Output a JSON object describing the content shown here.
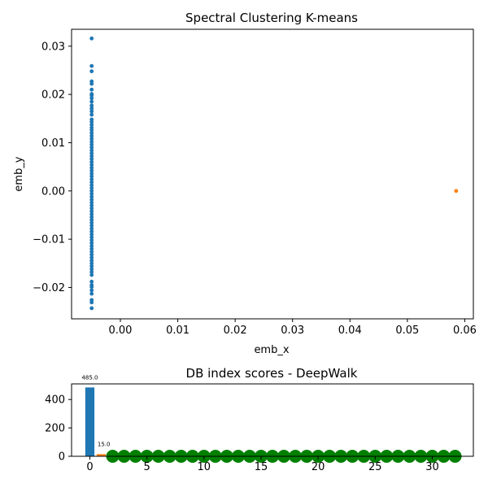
{
  "chart_data": [
    {
      "type": "scatter",
      "title": "Spectral Clustering K-means",
      "xlabel": "emb_x",
      "ylabel": "emb_y",
      "xlim": [
        -0.0085,
        0.0615
      ],
      "ylim": [
        -0.0265,
        0.0335
      ],
      "xticks": [
        0.0,
        0.01,
        0.02,
        0.03,
        0.04,
        0.05,
        0.06
      ],
      "xtick_labels": [
        "0.00",
        "0.01",
        "0.02",
        "0.03",
        "0.04",
        "0.05",
        "0.06"
      ],
      "yticks": [
        -0.02,
        -0.01,
        0.0,
        0.01,
        0.02,
        0.03
      ],
      "ytick_labels": [
        "−0.02",
        "−0.01",
        "0.00",
        "0.01",
        "0.02",
        "0.03"
      ],
      "grid": false,
      "series": [
        {
          "color": "#1f77b4",
          "x": -0.005,
          "y": [
            0.0316,
            0.0259,
            0.0248,
            0.0227,
            0.0222,
            0.021,
            0.0201,
            0.0198,
            0.0192,
            0.0185,
            0.0177,
            0.0171,
            0.0165,
            0.0158,
            0.0148,
            0.0143,
            0.0137,
            0.0131,
            0.0126,
            0.012,
            0.0114,
            0.0108,
            0.0102,
            0.0096,
            0.009,
            0.0084,
            0.0078,
            0.0072,
            0.0066,
            0.006,
            0.0054,
            0.0048,
            0.0042,
            0.0036,
            0.003,
            0.0024,
            0.0018,
            0.0012,
            0.0006,
            0.0,
            -0.0006,
            -0.0012,
            -0.0018,
            -0.0024,
            -0.003,
            -0.0036,
            -0.0042,
            -0.0048,
            -0.0054,
            -0.006,
            -0.0066,
            -0.0072,
            -0.0078,
            -0.0084,
            -0.009,
            -0.0096,
            -0.0102,
            -0.0108,
            -0.0114,
            -0.012,
            -0.0126,
            -0.0132,
            -0.0138,
            -0.0144,
            -0.015,
            -0.0156,
            -0.0162,
            -0.0168,
            -0.0174,
            -0.0188,
            -0.0195,
            -0.0199,
            -0.0206,
            -0.0213,
            -0.0226,
            -0.0231,
            -0.0243
          ]
        },
        {
          "color": "#ff7f0e",
          "x": 0.0585,
          "y": [
            0.0
          ]
        }
      ]
    },
    {
      "type": "bar",
      "title": "DB index scores - DeepWalk",
      "xlabel": "",
      "ylabel": "",
      "xlim": [
        -1.6,
        33.6
      ],
      "ylim": [
        0,
        510
      ],
      "xticks": [
        0,
        5,
        10,
        15,
        20,
        25,
        30
      ],
      "xtick_labels": [
        "0",
        "5",
        "10",
        "15",
        "20",
        "25",
        "30"
      ],
      "yticks": [
        0,
        200,
        400
      ],
      "ytick_labels": [
        "0",
        "200",
        "400"
      ],
      "grid": false,
      "bars": [
        {
          "x": 0,
          "value": 485.0,
          "label": "485.0",
          "color": "#1f77b4"
        },
        {
          "x": 1,
          "value": 15.0,
          "label": "15.0",
          "color": "#ff7f0e"
        }
      ],
      "markers": {
        "color": "#008000",
        "x": [
          2,
          3,
          4,
          5,
          6,
          7,
          8,
          9,
          10,
          11,
          12,
          13,
          14,
          15,
          16,
          17,
          18,
          19,
          20,
          21,
          22,
          23,
          24,
          25,
          26,
          27,
          28,
          29,
          30,
          31,
          32
        ],
        "y": 0
      }
    }
  ]
}
